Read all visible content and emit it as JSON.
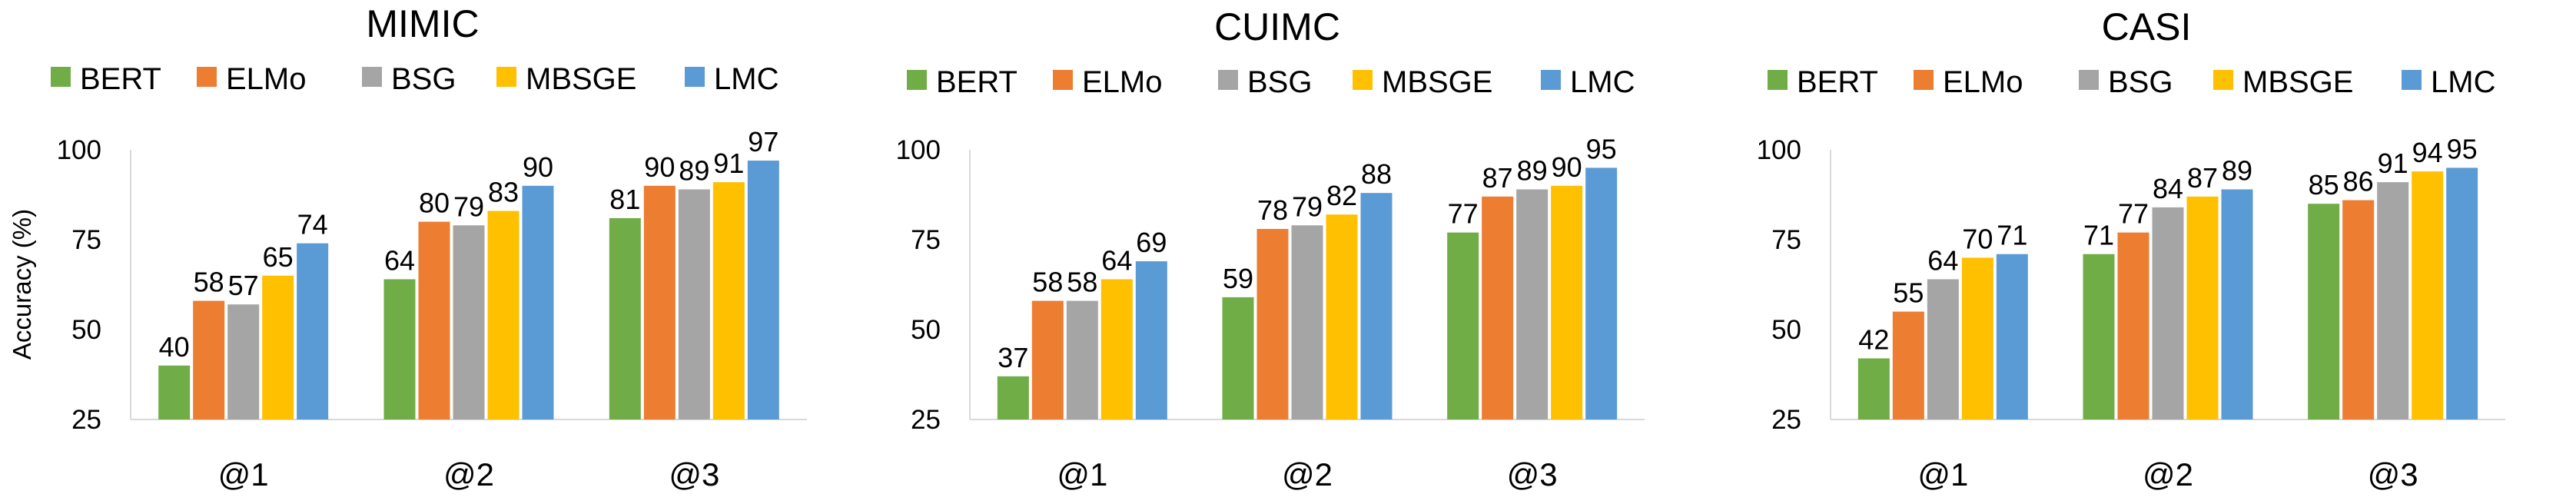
{
  "chart_data": [
    {
      "type": "bar",
      "title": "MIMIC",
      "ylabel": "Accuracy (%)",
      "xlabel": "",
      "ylim": [
        25,
        100
      ],
      "yticks": [
        25,
        50,
        75,
        100
      ],
      "categories": [
        "@1",
        "@2",
        "@3"
      ],
      "series": [
        {
          "name": "BERT",
          "color": "#70ad47",
          "values": [
            40,
            64,
            81
          ]
        },
        {
          "name": "ELMo",
          "color": "#ed7d31",
          "values": [
            58,
            80,
            90
          ]
        },
        {
          "name": "BSG",
          "color": "#a5a5a5",
          "values": [
            57,
            79,
            89
          ]
        },
        {
          "name": "MBSGE",
          "color": "#ffc000",
          "values": [
            65,
            83,
            91
          ]
        },
        {
          "name": "LMC",
          "color": "#5b9bd5",
          "values": [
            74,
            90,
            97
          ]
        }
      ],
      "legend_position": "top",
      "grid": false
    },
    {
      "type": "bar",
      "title": "CUIMC",
      "ylabel": "",
      "xlabel": "",
      "ylim": [
        25,
        100
      ],
      "yticks": [
        25,
        50,
        75,
        100
      ],
      "categories": [
        "@1",
        "@2",
        "@3"
      ],
      "series": [
        {
          "name": "BERT",
          "color": "#70ad47",
          "values": [
            37,
            59,
            77
          ]
        },
        {
          "name": "ELMo",
          "color": "#ed7d31",
          "values": [
            58,
            78,
            87
          ]
        },
        {
          "name": "BSG",
          "color": "#a5a5a5",
          "values": [
            58,
            79,
            89
          ]
        },
        {
          "name": "MBSGE",
          "color": "#ffc000",
          "values": [
            64,
            82,
            90
          ]
        },
        {
          "name": "LMC",
          "color": "#5b9bd5",
          "values": [
            69,
            88,
            95
          ]
        }
      ],
      "legend_position": "top",
      "grid": false
    },
    {
      "type": "bar",
      "title": "CASI",
      "ylabel": "",
      "xlabel": "",
      "ylim": [
        25,
        100
      ],
      "yticks": [
        25,
        50,
        75,
        100
      ],
      "categories": [
        "@1",
        "@2",
        "@3"
      ],
      "series": [
        {
          "name": "BERT",
          "color": "#70ad47",
          "values": [
            42,
            71,
            85
          ]
        },
        {
          "name": "ELMo",
          "color": "#ed7d31",
          "values": [
            55,
            77,
            86
          ]
        },
        {
          "name": "BSG",
          "color": "#a5a5a5",
          "values": [
            64,
            84,
            91
          ]
        },
        {
          "name": "MBSGE",
          "color": "#ffc000",
          "values": [
            70,
            87,
            94
          ]
        },
        {
          "name": "LMC",
          "color": "#5b9bd5",
          "values": [
            71,
            89,
            95
          ]
        }
      ],
      "legend_position": "top",
      "grid": false
    }
  ]
}
